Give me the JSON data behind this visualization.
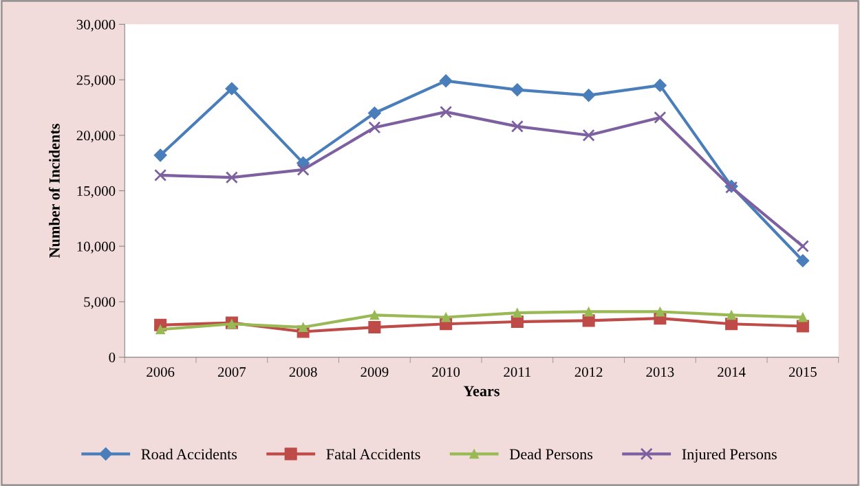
{
  "chart_data": {
    "type": "line",
    "xlabel": "Years",
    "ylabel": "Number of Incidents",
    "categories": [
      "2006",
      "2007",
      "2008",
      "2009",
      "2010",
      "2011",
      "2012",
      "2013",
      "2014",
      "2015"
    ],
    "series": [
      {
        "name": "Road Accidents",
        "color": "#4a7ebb",
        "marker": "diamond",
        "values": [
          18200,
          24200,
          17500,
          22000,
          24900,
          24100,
          23600,
          24500,
          15400,
          8700
        ]
      },
      {
        "name": "Fatal Accidents",
        "color": "#be4b48",
        "marker": "square",
        "values": [
          2900,
          3100,
          2300,
          2700,
          3000,
          3200,
          3300,
          3500,
          3000,
          2800
        ]
      },
      {
        "name": "Dead Persons",
        "color": "#98b954",
        "marker": "triangle",
        "values": [
          2500,
          3000,
          2700,
          3800,
          3600,
          4000,
          4100,
          4100,
          3800,
          3600
        ]
      },
      {
        "name": "Injured Persons",
        "color": "#7d60a0",
        "marker": "cross",
        "values": [
          16400,
          16200,
          16900,
          20700,
          22100,
          20800,
          20000,
          21600,
          15300,
          10000
        ]
      }
    ],
    "ylim": [
      0,
      30000
    ],
    "yticks": [
      {
        "value": 0,
        "label": "0"
      },
      {
        "value": 5000,
        "label": "5,000"
      },
      {
        "value": 10000,
        "label": "10,000"
      },
      {
        "value": 15000,
        "label": "15,000"
      },
      {
        "value": 20000,
        "label": "20,000"
      },
      {
        "value": 25000,
        "label": "25,000"
      },
      {
        "value": 30000,
        "label": "30,000"
      }
    ],
    "grid": false,
    "legend": "bottom",
    "line_style": "solid"
  }
}
